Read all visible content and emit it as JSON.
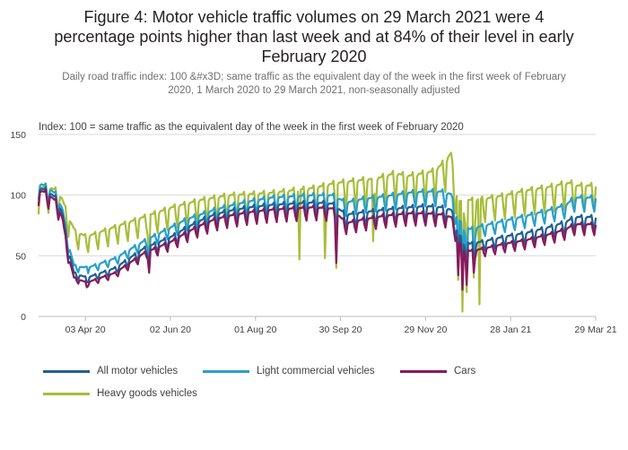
{
  "title_lines": [
    "Figure 4: Motor vehicle traffic volumes on 29 March 2021 were 4",
    "percentage points higher than last week and at 84% of their level in early",
    "February 2020"
  ],
  "subtitle_lines": [
    "Daily road traffic index: 100 &#x3D; same traffic as the equivalent day of the week in the first week of February",
    "2020, 1 March 2020 to 29 March 2021, non-seasonally adjusted"
  ],
  "index_note": "Index: 100 = same traffic as the equivalent day of the week in the first week of February 2020",
  "colors": {
    "all_motor": "#206095",
    "light_commercial": "#27a0cc",
    "cars": "#871a5b",
    "hgv": "#a8bd3a",
    "grid": "#d9d9d9",
    "axis": "#bcbcbc"
  },
  "chart_data": {
    "type": "line",
    "x_range": [
      "2020-03-01",
      "2021-03-29"
    ],
    "ylim": [
      0,
      150
    ],
    "yticks": [
      0,
      50,
      100,
      150
    ],
    "xtick_dates": [
      "2020-04-03",
      "2020-06-02",
      "2020-08-01",
      "2020-09-30",
      "2020-11-29",
      "2021-01-28",
      "2021-03-29"
    ],
    "xtick_labels": [
      "03 Apr 20",
      "02 Jun 20",
      "01 Aug 20",
      "30 Sep 20",
      "29 Nov 20",
      "28 Jan 21",
      "29 Mar 21"
    ],
    "weekend_dip_fraction": {
      "all_motor": 0.13,
      "light_commercial": 0.12,
      "cars": 0.12,
      "hgv": 0.2
    },
    "series": [
      {
        "key": "hgv",
        "name": "Heavy goods vehicles",
        "weekday_levels": [
          [
            1,
            106
          ],
          [
            7,
            107
          ],
          [
            14,
            104
          ],
          [
            18,
            96
          ],
          [
            22,
            82
          ],
          [
            27,
            70
          ],
          [
            35,
            66
          ],
          [
            45,
            70
          ],
          [
            55,
            74
          ],
          [
            65,
            78
          ],
          [
            75,
            82
          ],
          [
            85,
            86
          ],
          [
            95,
            90
          ],
          [
            105,
            93
          ],
          [
            115,
            96
          ],
          [
            125,
            98
          ],
          [
            135,
            100
          ],
          [
            150,
            101
          ],
          [
            165,
            102
          ],
          [
            180,
            104
          ],
          [
            195,
            106
          ],
          [
            210,
            110
          ],
          [
            225,
            112
          ],
          [
            240,
            114
          ],
          [
            252,
            118
          ],
          [
            262,
            116
          ],
          [
            272,
            118
          ],
          [
            280,
            120
          ],
          [
            288,
            128
          ],
          [
            292,
            135
          ],
          [
            294,
            112
          ],
          [
            297,
            95
          ],
          [
            305,
            96
          ],
          [
            315,
            97
          ],
          [
            330,
            100
          ],
          [
            345,
            104
          ],
          [
            362,
            107
          ],
          [
            373,
            110
          ],
          [
            377,
            110
          ],
          [
            379,
            108
          ]
        ],
        "anomalies": [
          [
            35,
            58
          ],
          [
            79,
            47
          ],
          [
            185,
            47
          ],
          [
            203,
            48
          ],
          [
            211,
            40
          ],
          [
            237,
            62
          ],
          [
            297,
            30
          ],
          [
            300,
            4
          ],
          [
            303,
            20
          ],
          [
            308,
            32
          ],
          [
            312,
            10
          ]
        ]
      },
      {
        "key": "light_commercial",
        "name": "Light commercial vehicles",
        "weekday_levels": [
          [
            1,
            110
          ],
          [
            7,
            107
          ],
          [
            14,
            100
          ],
          [
            18,
            88
          ],
          [
            22,
            60
          ],
          [
            26,
            42
          ],
          [
            35,
            40
          ],
          [
            45,
            44
          ],
          [
            55,
            48
          ],
          [
            65,
            55
          ],
          [
            75,
            62
          ],
          [
            85,
            68
          ],
          [
            95,
            74
          ],
          [
            105,
            80
          ],
          [
            115,
            84
          ],
          [
            125,
            88
          ],
          [
            135,
            91
          ],
          [
            150,
            95
          ],
          [
            165,
            98
          ],
          [
            180,
            99
          ],
          [
            195,
            100
          ],
          [
            208,
            100
          ],
          [
            218,
            94
          ],
          [
            230,
            97
          ],
          [
            245,
            99
          ],
          [
            262,
            102
          ],
          [
            275,
            103
          ],
          [
            285,
            103
          ],
          [
            292,
            101
          ],
          [
            294,
            90
          ],
          [
            297,
            80
          ],
          [
            305,
            72
          ],
          [
            315,
            75
          ],
          [
            330,
            79
          ],
          [
            345,
            83
          ],
          [
            362,
            88
          ],
          [
            373,
            92
          ],
          [
            379,
            98
          ]
        ],
        "anomalies": [
          [
            35,
            41
          ],
          [
            79,
            46
          ],
          [
            211,
            54
          ],
          [
            297,
            46
          ],
          [
            300,
            34
          ],
          [
            303,
            38
          ],
          [
            308,
            46
          ]
        ]
      },
      {
        "key": "all_motor",
        "name": "All motor vehicles",
        "weekday_levels": [
          [
            1,
            106
          ],
          [
            7,
            104
          ],
          [
            14,
            97
          ],
          [
            18,
            84
          ],
          [
            22,
            55
          ],
          [
            26,
            36
          ],
          [
            35,
            32
          ],
          [
            45,
            36
          ],
          [
            55,
            40
          ],
          [
            65,
            48
          ],
          [
            75,
            56
          ],
          [
            85,
            61
          ],
          [
            95,
            66
          ],
          [
            105,
            73
          ],
          [
            115,
            79
          ],
          [
            125,
            84
          ],
          [
            135,
            87
          ],
          [
            150,
            90
          ],
          [
            165,
            92
          ],
          [
            180,
            93
          ],
          [
            195,
            94
          ],
          [
            208,
            93
          ],
          [
            218,
            84
          ],
          [
            230,
            86
          ],
          [
            245,
            88
          ],
          [
            262,
            90
          ],
          [
            275,
            91
          ],
          [
            285,
            90
          ],
          [
            292,
            88
          ],
          [
            294,
            80
          ],
          [
            297,
            68
          ],
          [
            305,
            60
          ],
          [
            315,
            62
          ],
          [
            330,
            66
          ],
          [
            345,
            69
          ],
          [
            362,
            74
          ],
          [
            373,
            78
          ],
          [
            379,
            82
          ]
        ],
        "anomalies": [
          [
            35,
            28
          ],
          [
            79,
            40
          ],
          [
            211,
            47
          ],
          [
            297,
            38
          ],
          [
            300,
            26
          ],
          [
            303,
            30
          ],
          [
            308,
            40
          ]
        ]
      },
      {
        "key": "cars",
        "name": "Cars",
        "weekday_levels": [
          [
            1,
            104
          ],
          [
            7,
            102
          ],
          [
            14,
            94
          ],
          [
            18,
            80
          ],
          [
            22,
            50
          ],
          [
            26,
            32
          ],
          [
            35,
            28
          ],
          [
            45,
            32
          ],
          [
            55,
            36
          ],
          [
            65,
            44
          ],
          [
            75,
            52
          ],
          [
            85,
            57
          ],
          [
            95,
            62
          ],
          [
            105,
            69
          ],
          [
            115,
            75
          ],
          [
            125,
            80
          ],
          [
            135,
            83
          ],
          [
            150,
            86
          ],
          [
            165,
            88
          ],
          [
            180,
            89
          ],
          [
            195,
            90
          ],
          [
            208,
            89
          ],
          [
            218,
            77
          ],
          [
            230,
            80
          ],
          [
            245,
            83
          ],
          [
            262,
            85
          ],
          [
            275,
            85
          ],
          [
            285,
            84
          ],
          [
            292,
            82
          ],
          [
            294,
            75
          ],
          [
            297,
            62
          ],
          [
            305,
            54
          ],
          [
            315,
            56
          ],
          [
            330,
            60
          ],
          [
            345,
            63
          ],
          [
            362,
            68
          ],
          [
            373,
            72
          ],
          [
            379,
            76
          ]
        ],
        "anomalies": [
          [
            35,
            24
          ],
          [
            79,
            36
          ],
          [
            211,
            44
          ],
          [
            297,
            34
          ],
          [
            300,
            22
          ],
          [
            303,
            26
          ],
          [
            308,
            36
          ]
        ]
      }
    ],
    "legend": [
      {
        "key": "all_motor",
        "label": "All motor vehicles"
      },
      {
        "key": "light_commercial",
        "label": "Light commercial vehicles"
      },
      {
        "key": "cars",
        "label": "Cars"
      },
      {
        "key": "hgv",
        "label": "Heavy goods vehicles"
      }
    ]
  }
}
